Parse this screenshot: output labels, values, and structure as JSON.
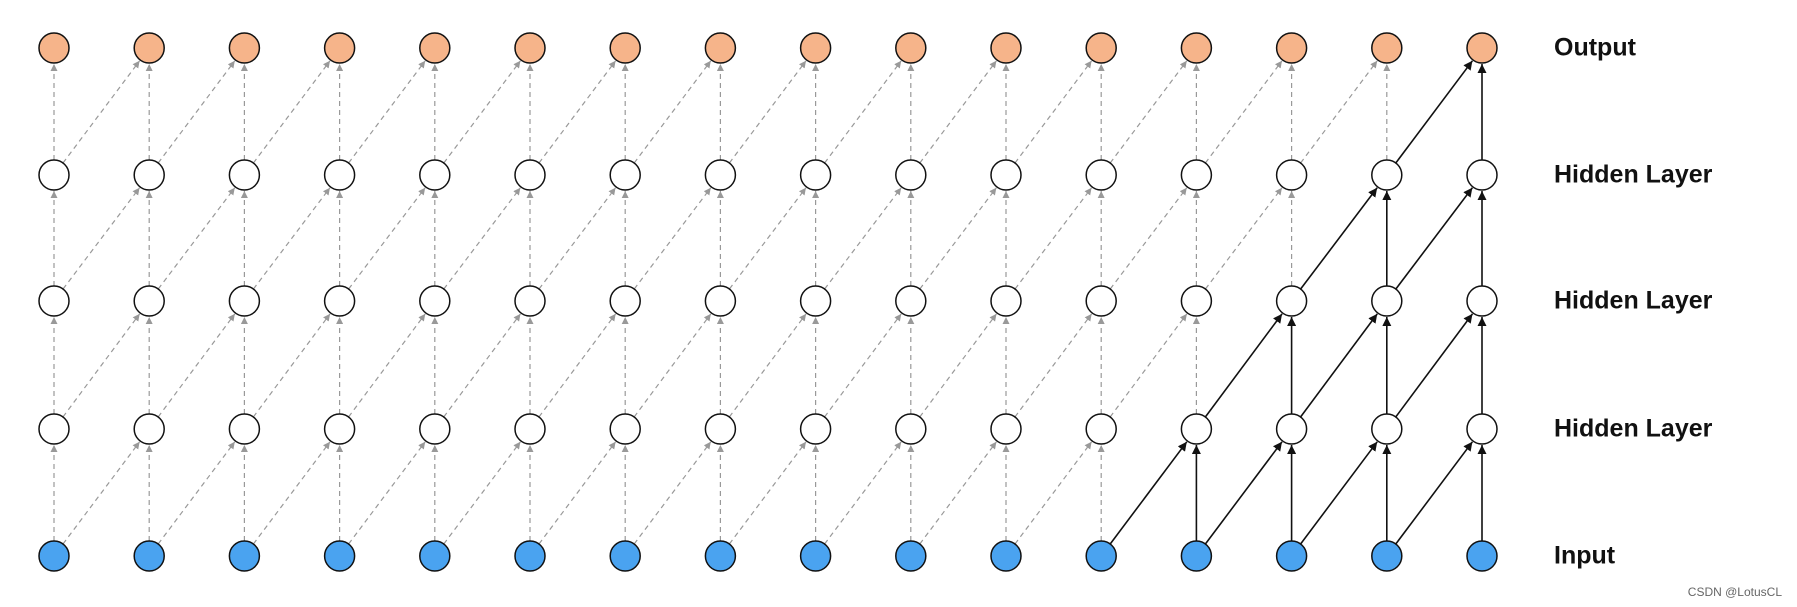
{
  "layers": [
    "Input",
    "Hidden Layer",
    "Hidden Layer",
    "Hidden Layer",
    "Output"
  ],
  "watermark": "CSDN @LotusCL"
}
